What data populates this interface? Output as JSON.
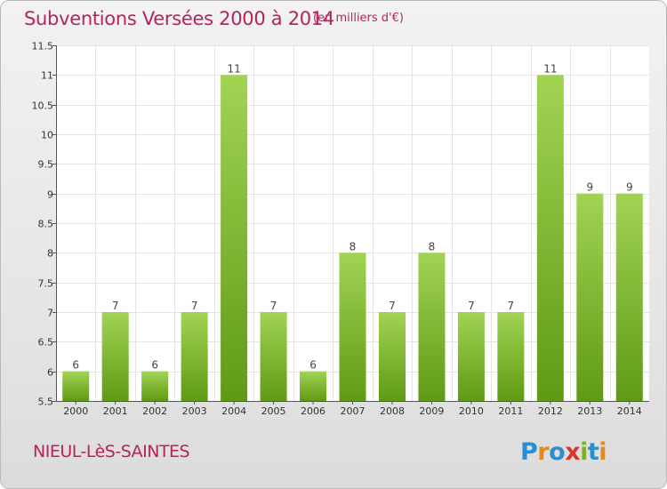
{
  "header": {
    "title": "Subventions Versées 2000 à 2014",
    "unit": "(en milliers d'€)"
  },
  "footer": {
    "commune": "NIEUL-LèS-SAINTES",
    "logo_text": "Proxiti"
  },
  "colors": {
    "title": "#b5245e",
    "bar_light": "#a2d354",
    "bar_dark": "#5f9a16",
    "grid": "#e4e4e4"
  },
  "chart_data": {
    "type": "bar",
    "title": "Subventions Versées 2000 à 2014",
    "subtitle": "(en milliers d'€)",
    "categories": [
      "2000",
      "2001",
      "2002",
      "2003",
      "2004",
      "2005",
      "2006",
      "2007",
      "2008",
      "2009",
      "2010",
      "2011",
      "2012",
      "2013",
      "2014"
    ],
    "values": [
      6,
      7,
      6,
      7,
      11,
      7,
      6,
      8,
      7,
      8,
      7,
      7,
      11,
      9,
      9
    ],
    "ylim": [
      5.5,
      11.5
    ],
    "yticks": [
      5.5,
      6,
      6.5,
      7,
      7.5,
      8,
      8.5,
      9,
      9.5,
      10,
      10.5,
      11,
      11.5
    ],
    "ytick_labels": [
      "5.5",
      "6",
      "6.5",
      "7",
      "7.5",
      "8",
      "8.5",
      "9",
      "9.5",
      "10",
      "10.5",
      "11",
      "11.5"
    ],
    "grid": true,
    "data_labels": true
  }
}
